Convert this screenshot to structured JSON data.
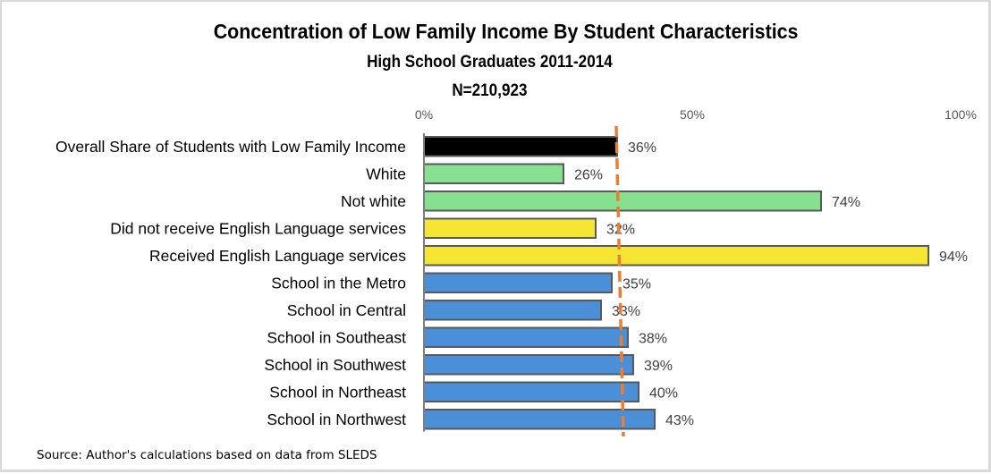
{
  "chart_data": {
    "type": "bar",
    "orientation": "horizontal",
    "title": "Concentration of Low Family Income By Student Characteristics",
    "subtitle": "High School Graduates 2011-2014",
    "subtitle2": "N=210,923",
    "xlabel": "",
    "ylabel": "",
    "xlim": [
      0,
      100
    ],
    "x_ticks": [
      "0%",
      "50%",
      "100%"
    ],
    "x_tick_values": [
      0,
      50,
      100
    ],
    "grid": false,
    "legend": "none",
    "categories": [
      "Overall Share of Students with Low Family Income",
      "White",
      "Not white",
      "Did not receive English Language services",
      "Received English Language services",
      "School in the Metro",
      "School in Central",
      "School in Southeast",
      "School in Southwest",
      "School in Northeast",
      "School in Northwest"
    ],
    "values": [
      36,
      26,
      74,
      32,
      94,
      35,
      33,
      38,
      39,
      40,
      43
    ],
    "value_labels": [
      "36%",
      "26%",
      "74%",
      "32%",
      "94%",
      "35%",
      "33%",
      "38%",
      "39%",
      "40%",
      "43%"
    ],
    "bar_colors": [
      "#000000",
      "#86e08f",
      "#86e08f",
      "#f5e633",
      "#f5e633",
      "#4a8fd8",
      "#4a8fd8",
      "#4a8fd8",
      "#4a8fd8",
      "#4a8fd8",
      "#4a8fd8"
    ],
    "reference_line": {
      "value": 36,
      "style": "dashed",
      "color": "#ed7d31"
    },
    "source": "Source: Author's calculations based on data from SLEDS"
  }
}
